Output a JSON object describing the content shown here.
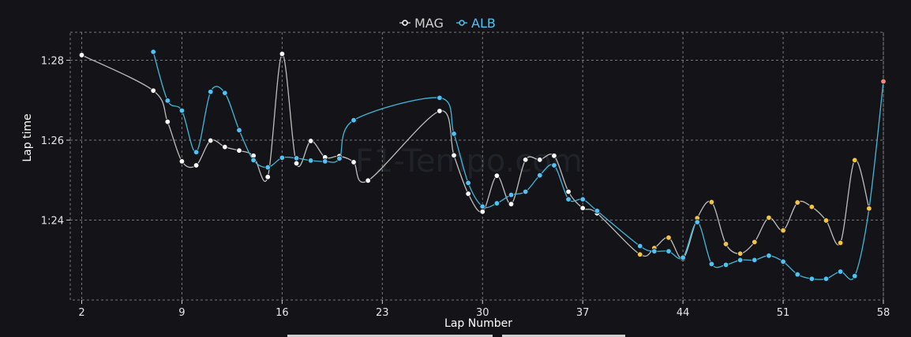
{
  "chart_data": {
    "type": "line",
    "xlabel": "Lap Number",
    "ylabel": "Lap time",
    "x_ticks": [
      2,
      9,
      16,
      23,
      30,
      37,
      44,
      51,
      58
    ],
    "xlim": [
      1.2,
      58
    ],
    "y_ticks": [
      84,
      86,
      88
    ],
    "y_tick_labels": [
      "1:24",
      "1:26",
      "1:28"
    ],
    "ylim": [
      82.0,
      88.7
    ],
    "grid": true,
    "legend_position": "top-center",
    "watermark": "F1-Tempo.com",
    "series": [
      {
        "name": "MAG",
        "color": "#ffffff",
        "line_color": "#bdbdbd",
        "points": [
          {
            "x": 2,
            "y": 88.13
          },
          {
            "x": 7,
            "y": 87.24
          },
          {
            "x": 8,
            "y": 86.46
          },
          {
            "x": 9,
            "y": 85.47
          },
          {
            "x": 10,
            "y": 85.37
          },
          {
            "x": 11,
            "y": 85.99
          },
          {
            "x": 12,
            "y": 85.83
          },
          {
            "x": 13,
            "y": 85.74
          },
          {
            "x": 14,
            "y": 85.61
          },
          {
            "x": 15,
            "y": 85.08
          },
          {
            "x": 16,
            "y": 88.16
          },
          {
            "x": 17,
            "y": 85.42
          },
          {
            "x": 18,
            "y": 85.98
          },
          {
            "x": 19,
            "y": 85.57
          },
          {
            "x": 20,
            "y": 85.6
          },
          {
            "x": 21,
            "y": 85.45
          },
          {
            "x": 22,
            "y": 84.99
          },
          {
            "x": 27,
            "y": 86.73
          },
          {
            "x": 28,
            "y": 85.62
          },
          {
            "x": 29,
            "y": 84.66
          },
          {
            "x": 30,
            "y": 84.21
          },
          {
            "x": 31,
            "y": 85.11
          },
          {
            "x": 32,
            "y": 84.4
          },
          {
            "x": 33,
            "y": 85.51
          },
          {
            "x": 34,
            "y": 85.51
          },
          {
            "x": 35,
            "y": 85.61
          },
          {
            "x": 36,
            "y": 84.71
          },
          {
            "x": 37,
            "y": 84.3
          },
          {
            "x": 38,
            "y": 84.17
          },
          {
            "x": 41,
            "y": 83.14,
            "pit": true
          },
          {
            "x": 42,
            "y": 83.3,
            "pit": true
          },
          {
            "x": 43,
            "y": 83.56,
            "pit": true
          },
          {
            "x": 44,
            "y": 83.03
          },
          {
            "x": 45,
            "y": 84.05,
            "pit": true
          },
          {
            "x": 46,
            "y": 84.45,
            "pit": true
          },
          {
            "x": 47,
            "y": 83.4,
            "pit": true
          },
          {
            "x": 48,
            "y": 83.16,
            "pit": true
          },
          {
            "x": 49,
            "y": 83.45,
            "pit": true
          },
          {
            "x": 50,
            "y": 84.06,
            "pit": true
          },
          {
            "x": 51,
            "y": 83.74,
            "pit": true
          },
          {
            "x": 52,
            "y": 84.44,
            "pit": true
          },
          {
            "x": 53,
            "y": 84.33,
            "pit": true
          },
          {
            "x": 54,
            "y": 83.99,
            "pit": true
          },
          {
            "x": 55,
            "y": 83.43,
            "pit": true
          },
          {
            "x": 56,
            "y": 85.5,
            "pit": true
          },
          {
            "x": 57,
            "y": 84.29,
            "pit": true
          }
        ]
      },
      {
        "name": "ALB",
        "color": "#4fc3f7",
        "line_color": "#43b6d8",
        "points": [
          {
            "x": 7,
            "y": 88.21
          },
          {
            "x": 8,
            "y": 86.99
          },
          {
            "x": 9,
            "y": 86.74
          },
          {
            "x": 10,
            "y": 85.7
          },
          {
            "x": 11,
            "y": 87.21
          },
          {
            "x": 12,
            "y": 87.18
          },
          {
            "x": 13,
            "y": 86.25
          },
          {
            "x": 14,
            "y": 85.5
          },
          {
            "x": 15,
            "y": 85.32
          },
          {
            "x": 16,
            "y": 85.56
          },
          {
            "x": 17,
            "y": 85.55
          },
          {
            "x": 18,
            "y": 85.49
          },
          {
            "x": 19,
            "y": 85.47
          },
          {
            "x": 20,
            "y": 85.54
          },
          {
            "x": 21,
            "y": 86.5
          },
          {
            "x": 27,
            "y": 87.06
          },
          {
            "x": 28,
            "y": 86.16
          },
          {
            "x": 29,
            "y": 84.93
          },
          {
            "x": 30,
            "y": 84.34
          },
          {
            "x": 31,
            "y": 84.42
          },
          {
            "x": 32,
            "y": 84.63
          },
          {
            "x": 33,
            "y": 84.71
          },
          {
            "x": 34,
            "y": 85.12
          },
          {
            "x": 35,
            "y": 85.37
          },
          {
            "x": 36,
            "y": 84.52
          },
          {
            "x": 37,
            "y": 84.52
          },
          {
            "x": 38,
            "y": 84.23
          },
          {
            "x": 41,
            "y": 83.35
          },
          {
            "x": 42,
            "y": 83.22
          },
          {
            "x": 43,
            "y": 83.22
          },
          {
            "x": 44,
            "y": 83.06
          },
          {
            "x": 45,
            "y": 83.95
          },
          {
            "x": 46,
            "y": 82.9
          },
          {
            "x": 47,
            "y": 82.88
          },
          {
            "x": 48,
            "y": 83.0
          },
          {
            "x": 49,
            "y": 83.0
          },
          {
            "x": 50,
            "y": 83.11
          },
          {
            "x": 51,
            "y": 82.96
          },
          {
            "x": 52,
            "y": 82.64
          },
          {
            "x": 53,
            "y": 82.53
          },
          {
            "x": 54,
            "y": 82.53
          },
          {
            "x": 55,
            "y": 82.71
          },
          {
            "x": 56,
            "y": 82.6
          },
          {
            "x": 57,
            "y": 84.29,
            "pit": true
          },
          {
            "x": 58,
            "y": 87.47,
            "end": true
          }
        ]
      }
    ],
    "pit_marker_color": "#f4c542",
    "end_marker_color": "#f08a7a"
  }
}
